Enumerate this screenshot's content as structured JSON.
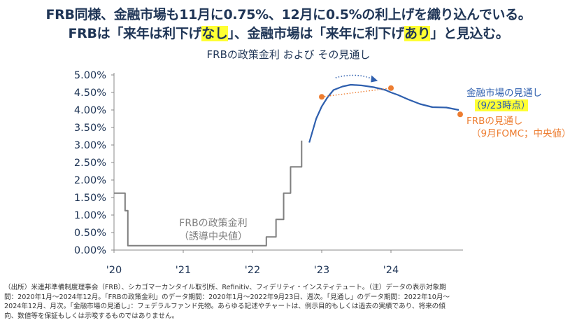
{
  "headline": {
    "line1": "FRB同様、金融市場も11月に0.75%、12月に0.5%の利上げを織り込んでいる。",
    "line2_a": "FRBは「来年は利下げ",
    "line2_b": "なし",
    "line2_c": "」、金融市場は「来年に利下げ",
    "line2_d": "あり",
    "line2_e": "」と見込む。"
  },
  "chart_data": {
    "type": "line",
    "title": "FRBの政策金利 および その見通し",
    "xlabel": "",
    "ylabel": "",
    "x_tick_labels": [
      "'20",
      "'21",
      "'22",
      "'23",
      "'24"
    ],
    "x_ticks": [
      2020.0,
      2021.0,
      2022.0,
      2023.0,
      2024.0
    ],
    "xlim": [
      2020.0,
      2025.0
    ],
    "y_tick_labels": [
      "0.00%",
      "0.50%",
      "1.00%",
      "1.50%",
      "2.00%",
      "2.50%",
      "3.00%",
      "3.50%",
      "4.00%",
      "4.50%",
      "5.00%"
    ],
    "ylim": [
      0,
      5
    ],
    "grid": false,
    "series": [
      {
        "name": "FRBの政策金利（誘導中央値）",
        "color": "#7f7f7f",
        "style": "step",
        "points": [
          [
            2020.0,
            1.625
          ],
          [
            2020.16,
            1.625
          ],
          [
            2020.16,
            1.125
          ],
          [
            2020.2,
            1.125
          ],
          [
            2020.2,
            0.125
          ],
          [
            2022.2,
            0.125
          ],
          [
            2022.2,
            0.375
          ],
          [
            2022.34,
            0.375
          ],
          [
            2022.34,
            0.875
          ],
          [
            2022.45,
            0.875
          ],
          [
            2022.45,
            1.625
          ],
          [
            2022.55,
            1.625
          ],
          [
            2022.55,
            2.375
          ],
          [
            2022.71,
            2.375
          ],
          [
            2022.71,
            3.125
          ]
        ]
      },
      {
        "name": "金融市場の見通し（9/23時点）",
        "color": "#2e5fae",
        "style": "line",
        "points": [
          [
            2022.82,
            3.07
          ],
          [
            2022.92,
            3.75
          ],
          [
            2023.0,
            4.1
          ],
          [
            2023.08,
            4.35
          ],
          [
            2023.17,
            4.57
          ],
          [
            2023.3,
            4.67
          ],
          [
            2023.42,
            4.72
          ],
          [
            2023.58,
            4.7
          ],
          [
            2023.75,
            4.65
          ],
          [
            2023.92,
            4.57
          ],
          [
            2024.0,
            4.5
          ],
          [
            2024.1,
            4.43
          ],
          [
            2024.25,
            4.3
          ],
          [
            2024.42,
            4.17
          ],
          [
            2024.6,
            4.08
          ],
          [
            2024.8,
            4.07
          ],
          [
            2024.98,
            4.0
          ]
        ]
      },
      {
        "name": "FRBの見通し（9月FOMC；中央値）",
        "color": "#ed7d31",
        "style": "markers",
        "points": [
          [
            2023.0,
            4.375
          ],
          [
            2024.0,
            4.625
          ],
          [
            2025.0,
            3.875
          ]
        ]
      }
    ],
    "annotations": {
      "policy_label_1": "FRBの政策金利",
      "policy_label_2": "（誘導中央値）",
      "market_label_1": "金融市場の見通し",
      "market_label_2": "（9/23時点）",
      "fomc_label_1": "FRBの見通し",
      "fomc_label_2": "（9月FOMC；中央値）"
    }
  },
  "footnote": {
    "line1": "（出所）米連邦準備制度理事会（FRB）、シカゴマーカンタイル取引所、Refinitiv、フィデリティ・インスティテュート。（注）データの表示対象期",
    "line2": "間：2020年1月～2024年12月。「FRBの政策金利」のデータ期間：2020年1月～2022年9月23日、週次。「見通し」のデータ期間：2022年10月～",
    "line3": "2024年12月、月次。「金融市場の見通し」：フェデラルファンド先物。あらゆる記述やチャートは、例示目的もしくは過去の実績であり、将来の傾",
    "line4": "向、数値等を保証もしくは示唆するものではありません。"
  }
}
